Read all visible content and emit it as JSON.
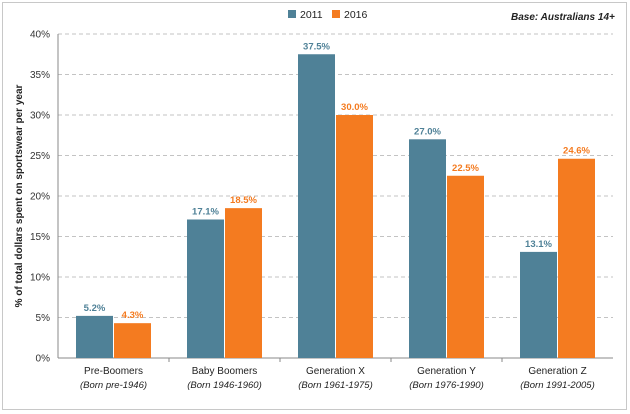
{
  "chart_data": {
    "type": "bar",
    "title": "",
    "note": "Base: Australians 14+",
    "ylabel": "% of total dollars spent on sportswear per year",
    "xlabel": "",
    "ylim": [
      0,
      40
    ],
    "yticks": [
      "0%",
      "5%",
      "10%",
      "15%",
      "20%",
      "25%",
      "30%",
      "35%",
      "40%"
    ],
    "grid": true,
    "legend_position": "top-center",
    "categories": [
      {
        "name": "Pre-Boomers",
        "sub": "(Born pre-1946)"
      },
      {
        "name": "Baby Boomers",
        "sub": "(Born 1946-1960)"
      },
      {
        "name": "Generation X",
        "sub": "(Born 1961-1975)"
      },
      {
        "name": "Generation Y",
        "sub": "(Born 1976-1990)"
      },
      {
        "name": "Generation Z",
        "sub": "(Born 1991-2005)"
      }
    ],
    "series": [
      {
        "name": "2011",
        "color": "#4f8197",
        "label_color": "#4f8197",
        "values": [
          5.2,
          17.1,
          37.5,
          27.0,
          13.1
        ],
        "labels": [
          "5.2%",
          "17.1%",
          "37.5%",
          "27.0%",
          "13.1%"
        ]
      },
      {
        "name": "2016",
        "color": "#f47b20",
        "label_color": "#f47b20",
        "values": [
          4.3,
          18.5,
          30.0,
          22.5,
          24.6
        ],
        "labels": [
          "4.3%",
          "18.5%",
          "30.0%",
          "22.5%",
          "24.6%"
        ]
      }
    ]
  }
}
